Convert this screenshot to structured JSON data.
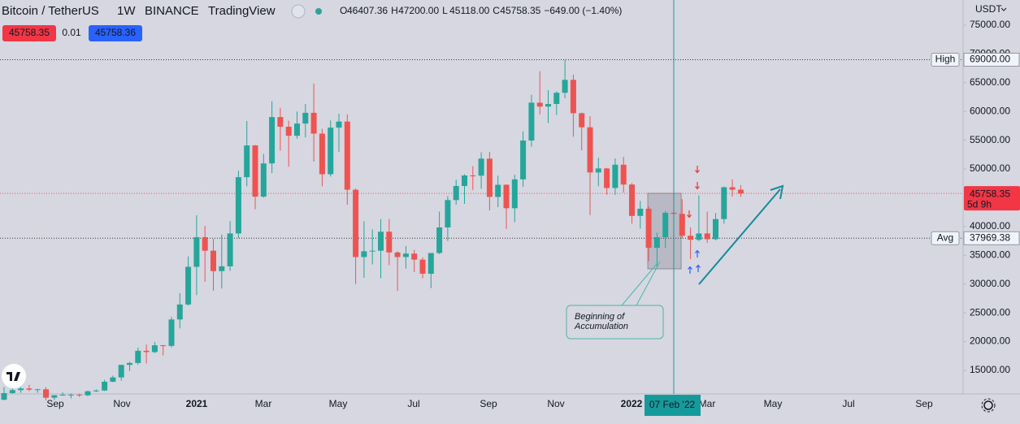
{
  "header": {
    "symbol": "Bitcoin / TetherUS",
    "interval": "1W",
    "exchange": "BINANCE",
    "source": "TradingView",
    "ohlc": [
      {
        "key": "O",
        "value": "46407.36"
      },
      {
        "key": "H",
        "value": "47200.00"
      },
      {
        "key": "L",
        "value": "45118.00"
      },
      {
        "key": "C",
        "value": "45758.35"
      }
    ],
    "change": "−649.00 (−1.40%)"
  },
  "trade": {
    "sell": "45758.35",
    "spread": "0.01",
    "buy": "45758.36"
  },
  "currency": "USDT",
  "chart_data": {
    "type": "candlestick",
    "open": [
      9900,
      11050,
      11570,
      11850,
      11650,
      11710,
      10250,
      10680,
      10780,
      10780,
      10670,
      11370,
      11500,
      13030,
      13780,
      15960,
      16290,
      18410,
      18180,
      19360,
      19260,
      23850,
      26450,
      33000,
      38150,
      35800,
      32260,
      33090,
      38800,
      48580,
      54100,
      45200,
      50970,
      59030,
      57350,
      55780,
      57900,
      59770,
      56150,
      49100,
      57200,
      58250,
      46400,
      34700,
      35700,
      35800,
      39100,
      35500,
      34700,
      35300,
      34250,
      31800,
      35400,
      39850,
      44600,
      47050,
      48880,
      48850,
      51800,
      45150,
      47260,
      43180,
      48200,
      54950,
      61530,
      60850,
      61300,
      63250,
      65500,
      59700,
      57250,
      49400,
      50100,
      46700,
      50750,
      47300,
      41850,
      43100,
      36300,
      38150,
      42400,
      42200,
      38400,
      37700,
      38800,
      37800,
      41300,
      46830,
      46407.36
    ],
    "high": [
      12123,
      11900,
      12100,
      12480,
      11800,
      12080,
      10700,
      11180,
      10990,
      10950,
      11500,
      11720,
      13350,
      14100,
      15960,
      16480,
      18950,
      19480,
      19920,
      19420,
      24300,
      28420,
      34800,
      41950,
      40100,
      37850,
      38600,
      40950,
      49700,
      58350,
      54200,
      52640,
      61800,
      60630,
      58400,
      60000,
      61300,
      64850,
      57000,
      58450,
      59600,
      59500,
      46600,
      40900,
      39500,
      41300,
      41300,
      35700,
      36600,
      35950,
      34650,
      35400,
      42600,
      45300,
      48150,
      49100,
      50500,
      52900,
      52950,
      48850,
      47350,
      49000,
      56550,
      62900,
      67000,
      63700,
      63500,
      69000,
      66400,
      59800,
      59200,
      51950,
      50200,
      51850,
      52100,
      47550,
      44450,
      43500,
      38950,
      42700,
      45850,
      44750,
      39850,
      45400,
      42600,
      42350,
      46950,
      48200,
      47200
    ],
    "low": [
      9800,
      10950,
      11100,
      11400,
      11100,
      9825,
      9860,
      10600,
      10130,
      10370,
      10530,
      11220,
      11400,
      12950,
      13200,
      14900,
      16000,
      16200,
      18000,
      17580,
      19000,
      22300,
      26250,
      28100,
      30420,
      28850,
      29220,
      32300,
      37980,
      47000,
      43000,
      45000,
      49300,
      53200,
      50400,
      55300,
      55500,
      51300,
      47000,
      48700,
      53000,
      43800,
      30000,
      31100,
      33400,
      31000,
      33300,
      28800,
      32700,
      32100,
      31000,
      29300,
      35200,
      37500,
      43800,
      43950,
      46350,
      46550,
      42800,
      43370,
      39600,
      40750,
      46900,
      53900,
      59500,
      58000,
      59400,
      62300,
      55600,
      53250,
      42000,
      47000,
      45550,
      45500,
      45900,
      40500,
      39650,
      34000,
      32900,
      36250,
      41700,
      38000,
      34350,
      37450,
      37150,
      37600,
      40500,
      45200,
      45118
    ],
    "close": [
      11050,
      11570,
      11850,
      11650,
      11710,
      10250,
      10680,
      10780,
      10780,
      10670,
      11370,
      11500,
      13030,
      13780,
      15960,
      16290,
      18410,
      18180,
      19360,
      19260,
      23850,
      26450,
      33000,
      38150,
      35800,
      32260,
      33090,
      38800,
      48580,
      54100,
      45200,
      50970,
      59030,
      57350,
      55780,
      57900,
      59770,
      56150,
      49100,
      57200,
      58250,
      46400,
      34700,
      35700,
      35800,
      39100,
      35500,
      34700,
      35300,
      34250,
      31800,
      35400,
      39850,
      44600,
      47050,
      48880,
      48850,
      51800,
      45150,
      47260,
      43180,
      48200,
      54950,
      61530,
      60850,
      61300,
      63250,
      65500,
      59700,
      57250,
      49400,
      50100,
      46700,
      50750,
      47300,
      41850,
      43100,
      36300,
      38150,
      42400,
      42200,
      38400,
      37700,
      38800,
      37800,
      41300,
      46830,
      46407.36,
      45758.35
    ],
    "up_color": "#26a69a",
    "down_color": "#ef5350",
    "ylim": [
      10904,
      79376
    ],
    "yticks": [
      {
        "value": 15000,
        "label": "15000.00"
      },
      {
        "value": 20000,
        "label": "20000.00"
      },
      {
        "value": 25000,
        "label": "25000.00"
      },
      {
        "value": 30000,
        "label": "30000.00"
      },
      {
        "value": 35000,
        "label": "35000.00"
      },
      {
        "value": 40000,
        "label": "40000.00"
      },
      {
        "value": 45000,
        "label": "45000.00"
      },
      {
        "value": 50000,
        "label": "50000.00"
      },
      {
        "value": 55000,
        "label": "55000.00"
      },
      {
        "value": 60000,
        "label": "60000.00"
      },
      {
        "value": 65000,
        "label": "65000.00"
      },
      {
        "value": 70000,
        "label": "70000.00"
      },
      {
        "value": 75000,
        "label": "75000.00"
      }
    ],
    "xtick_labels": [
      "Sep",
      "Nov",
      "2021",
      "Mar",
      "May",
      "Jul",
      "Sep",
      "Nov",
      "2022",
      "Mar",
      "May",
      "Jul",
      "Sep"
    ],
    "markers": [
      {
        "label": "High",
        "value": 69000,
        "value_label": "69000.00"
      },
      {
        "label": "Avg",
        "value": 37969.38,
        "value_label": "37969.38"
      }
    ],
    "last_price": {
      "value": 45758.35,
      "value_label": "45758.35",
      "countdown": "5d 9h"
    },
    "crosshair": {
      "label": "07 Feb '22"
    },
    "annotation": {
      "text": [
        "Beginning of",
        "Accumulation"
      ]
    }
  }
}
